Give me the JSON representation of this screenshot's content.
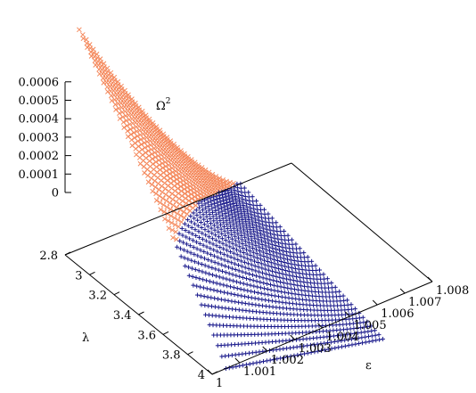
{
  "chart_data": {
    "type": "scatter",
    "title": "",
    "zlabel": "Ω",
    "zlabel_superscript": "2",
    "xlabel": "ε",
    "ylabel": "λ",
    "x_ticks": [
      "1",
      "1.001",
      "1.002",
      "1.003",
      "1.004",
      "1.005",
      "1.006",
      "1.007",
      "1.008"
    ],
    "y_ticks": [
      "2.8",
      "3",
      "3.2",
      "3.4",
      "3.6",
      "3.8",
      "4"
    ],
    "z_ticks": [
      "0",
      "0.0001",
      "0.0002",
      "0.0003",
      "0.0004",
      "0.0005",
      "0.0006"
    ],
    "xlim": [
      1,
      1.008
    ],
    "ylim": [
      2.8,
      4
    ],
    "zlim": [
      0,
      0.0006
    ],
    "series": [
      {
        "marker": "x",
        "color": "#f4875a"
      },
      {
        "marker": "+",
        "color": "#1a1a8c"
      }
    ],
    "grid": false,
    "legend": "none"
  }
}
